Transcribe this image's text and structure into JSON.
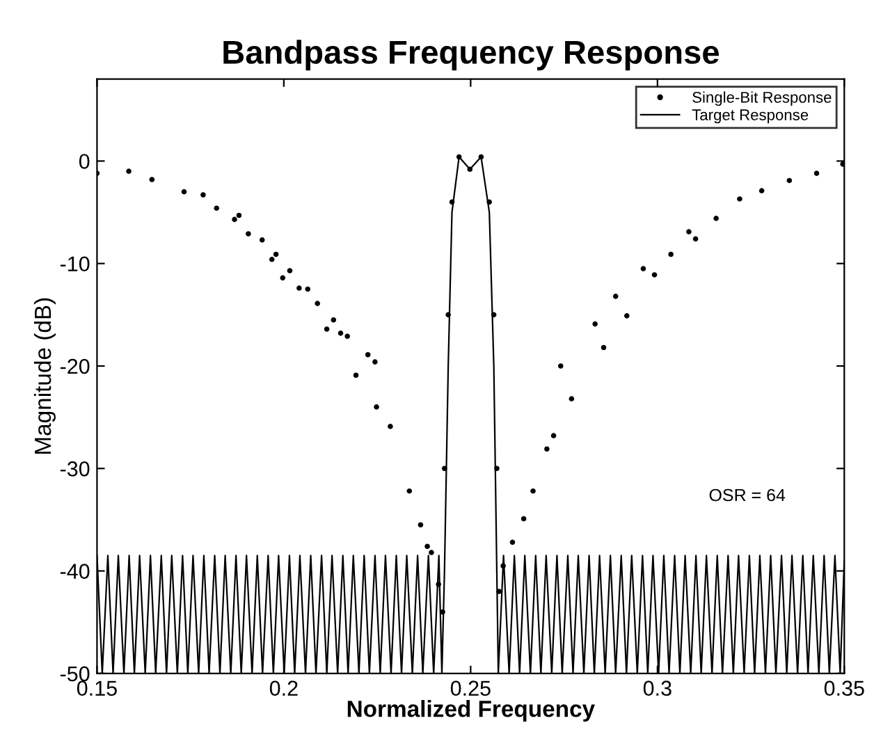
{
  "chart_data": {
    "type": "line",
    "title": "Bandpass Frequency Response",
    "xlabel": "Normalized Frequency",
    "ylabel": "Magnitude (dB)",
    "annotations": [
      "OSR = 64"
    ],
    "xlim": [
      0.15,
      0.35
    ],
    "ylim": [
      -50,
      8
    ],
    "xticks": [
      0.15,
      0.2,
      0.25,
      0.3,
      0.35
    ],
    "yticks": [
      -50,
      -40,
      -30,
      -20,
      -10,
      0
    ],
    "grid": false,
    "legend": "top right",
    "series": [
      {
        "name": "Single-Bit Response",
        "type": "scatter",
        "marker": "circle",
        "color": "#000000",
        "x": [
          0.15,
          0.1585,
          0.1647,
          0.1733,
          0.1784,
          0.182,
          0.1868,
          0.188,
          0.1905,
          0.1942,
          0.1968,
          0.1979,
          0.1997,
          0.2016,
          0.2041,
          0.2064,
          0.209,
          0.2115,
          0.2133,
          0.2152,
          0.217,
          0.2193,
          0.2225,
          0.2244,
          0.2248,
          0.2285,
          0.2336,
          0.2366,
          0.2384,
          0.2395,
          0.2414,
          0.2425,
          0.243,
          0.244,
          0.245,
          0.2469,
          0.2498,
          0.2528,
          0.255,
          0.2562,
          0.257,
          0.2576,
          0.2587,
          0.2612,
          0.2642,
          0.2667,
          0.2704,
          0.2722,
          0.2741,
          0.277,
          0.2833,
          0.2856,
          0.2888,
          0.2918,
          0.2962,
          0.2992,
          0.3036,
          0.3084,
          0.3102,
          0.3157,
          0.322,
          0.3279,
          0.3353,
          0.3426,
          0.3496
        ],
        "values": [
          -1.2,
          -1.0,
          -1.8,
          -3.0,
          -3.3,
          -4.6,
          -5.7,
          -5.3,
          -7.1,
          -7.7,
          -9.6,
          -9.1,
          -11.4,
          -10.7,
          -12.4,
          -12.5,
          -13.9,
          -16.4,
          -15.5,
          -16.8,
          -17.1,
          -20.9,
          -18.9,
          -19.6,
          -24.0,
          -25.9,
          -32.2,
          -35.5,
          -37.6,
          -38.2,
          -41.3,
          -44,
          -30,
          -15,
          -4,
          0.4,
          -0.8,
          0.4,
          -4,
          -15,
          -30,
          -42,
          -39.5,
          -37.2,
          -34.9,
          -32.2,
          -28.1,
          -26.8,
          -20.0,
          -23.2,
          -15.9,
          -18.2,
          -13.2,
          -15.1,
          -10.5,
          -11.1,
          -9.1,
          -6.9,
          -7.6,
          -5.6,
          -3.7,
          -2.9,
          -1.9,
          -1.2,
          -0.3
        ]
      },
      {
        "name": "Target Response",
        "line_style": "solid",
        "color": "#000000",
        "x": [
          0.15,
          0.1514,
          0.1529,
          0.1543,
          0.1557,
          0.1572,
          0.1586,
          0.16,
          0.1614,
          0.1629,
          0.1643,
          0.1657,
          0.1672,
          0.1686,
          0.17,
          0.1715,
          0.1729,
          0.1743,
          0.1757,
          0.1772,
          0.1786,
          0.18,
          0.1815,
          0.1829,
          0.1843,
          0.1858,
          0.1872,
          0.1886,
          0.19,
          0.1915,
          0.1929,
          0.1943,
          0.1958,
          0.1972,
          0.1986,
          0.2001,
          0.2015,
          0.2029,
          0.2043,
          0.2058,
          0.2072,
          0.2086,
          0.2101,
          0.2115,
          0.2129,
          0.2144,
          0.2158,
          0.2172,
          0.2186,
          0.2201,
          0.2215,
          0.2229,
          0.2244,
          0.2258,
          0.2272,
          0.2287,
          0.2301,
          0.2315,
          0.2329,
          0.2344,
          0.2358,
          0.2372,
          0.2387,
          0.2401,
          0.2415,
          0.2423,
          0.243,
          0.244,
          0.245,
          0.2469,
          0.2498,
          0.2528,
          0.255,
          0.2562,
          0.257,
          0.2574,
          0.2588,
          0.2603,
          0.2617,
          0.2631,
          0.2645,
          0.266,
          0.2674,
          0.2688,
          0.2702,
          0.2717,
          0.2731,
          0.2745,
          0.276,
          0.2774,
          0.2788,
          0.2803,
          0.2817,
          0.2831,
          0.2845,
          0.286,
          0.2874,
          0.2888,
          0.2903,
          0.2917,
          0.2931,
          0.2946,
          0.296,
          0.2974,
          0.2988,
          0.3003,
          0.3017,
          0.3031,
          0.3046,
          0.306,
          0.3074,
          0.3089,
          0.3103,
          0.3117,
          0.3131,
          0.3146,
          0.316,
          0.3174,
          0.3189,
          0.3203,
          0.3217,
          0.3232,
          0.3246,
          0.326,
          0.3274,
          0.3289,
          0.3303,
          0.3317,
          0.3332,
          0.3346,
          0.336,
          0.3375,
          0.3389,
          0.3403,
          0.3417,
          0.3432,
          0.3446,
          0.346,
          0.3475,
          0.3489,
          0.35
        ],
        "values": [
          -38.5,
          -50,
          -38.5,
          -50,
          -38.5,
          -50,
          -38.5,
          -50,
          -38.5,
          -50,
          -38.5,
          -50,
          -38.5,
          -50,
          -38.5,
          -50,
          -38.5,
          -50,
          -38.5,
          -50,
          -38.5,
          -50,
          -38.5,
          -50,
          -38.5,
          -50,
          -38.5,
          -50,
          -38.5,
          -50,
          -38.5,
          -50,
          -38.5,
          -50,
          -38.5,
          -50,
          -38.5,
          -50,
          -38.5,
          -50,
          -38.5,
          -50,
          -38.5,
          -50,
          -38.5,
          -50,
          -38.5,
          -50,
          -38.5,
          -50,
          -38.5,
          -50,
          -38.5,
          -50,
          -38.5,
          -50,
          -38.5,
          -50,
          -38.5,
          -50,
          -38.5,
          -50,
          -38.5,
          -50,
          -38.5,
          -50,
          -40,
          -20,
          -5,
          0.4,
          -0.8,
          0.4,
          -5,
          -20,
          -40,
          -50,
          -38.5,
          -50,
          -38.5,
          -50,
          -38.5,
          -50,
          -38.5,
          -50,
          -38.5,
          -50,
          -38.5,
          -50,
          -38.5,
          -50,
          -38.5,
          -50,
          -38.5,
          -50,
          -38.5,
          -50,
          -38.5,
          -50,
          -38.5,
          -50,
          -38.5,
          -50,
          -38.5,
          -50,
          -38.5,
          -50,
          -38.5,
          -50,
          -38.5,
          -50,
          -38.5,
          -50,
          -38.5,
          -50,
          -38.5,
          -50,
          -38.5,
          -50,
          -38.5,
          -50,
          -38.5,
          -50,
          -38.5,
          -50,
          -38.5,
          -50,
          -38.5,
          -50,
          -38.5,
          -50,
          -38.5,
          -50,
          -38.5,
          -50,
          -38.5,
          -50,
          -38.5,
          -50,
          -38.5,
          -50,
          -39
        ]
      }
    ]
  }
}
